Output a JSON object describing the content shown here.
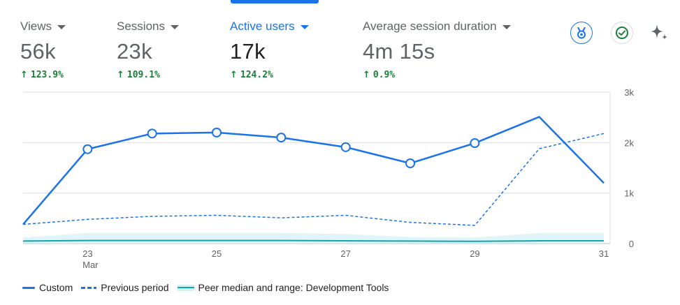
{
  "metrics": [
    {
      "label": "Views",
      "value": "56k",
      "change": "123.9%",
      "active": false
    },
    {
      "label": "Sessions",
      "value": "23k",
      "change": "109.1%",
      "active": false
    },
    {
      "label": "Active users",
      "value": "17k",
      "change": "124.2%",
      "active": true
    },
    {
      "label": "Average session duration",
      "value": "4m 15s",
      "change": "0.9%",
      "active": false
    }
  ],
  "icons": {
    "insights": "medal-icon",
    "verified": "check-circle-icon",
    "ai": "sparkle-icon"
  },
  "colors": {
    "primary": "#1a73e8",
    "positive": "#188038",
    "peer_line": "#12a4af",
    "peer_band": "#d4f1f4"
  },
  "chart_data": {
    "type": "line",
    "x": [
      "22",
      "23",
      "24",
      "25",
      "26",
      "27",
      "28",
      "29",
      "30",
      "31"
    ],
    "x_tick_labels": [
      {
        "x": "23",
        "label": "23",
        "sublabel": "Mar"
      },
      {
        "x": "25",
        "label": "25",
        "sublabel": ""
      },
      {
        "x": "27",
        "label": "27",
        "sublabel": ""
      },
      {
        "x": "29",
        "label": "29",
        "sublabel": ""
      },
      {
        "x": "31",
        "label": "31",
        "sublabel": ""
      }
    ],
    "y_ticks": [
      0,
      1000,
      2000,
      3000
    ],
    "y_tick_labels": [
      "0",
      "1k",
      "2k",
      "3k"
    ],
    "ylim": [
      0,
      3000
    ],
    "y_axis_side": "right",
    "grid": true,
    "series": [
      {
        "name": "Custom",
        "style": "solid",
        "markers": [
          false,
          true,
          true,
          true,
          true,
          true,
          true,
          true,
          false,
          false
        ],
        "values": [
          380,
          1870,
          2180,
          2200,
          2100,
          1910,
          1590,
          1990,
          2510,
          1200
        ]
      },
      {
        "name": "Previous period",
        "style": "dashed",
        "values": [
          380,
          480,
          540,
          560,
          510,
          560,
          420,
          360,
          1880,
          2180
        ]
      },
      {
        "name": "Peer median and range: Development Tools",
        "style": "band",
        "values": [
          50,
          60,
          60,
          60,
          60,
          55,
          50,
          45,
          55,
          55
        ],
        "range_low": [
          0,
          0,
          0,
          0,
          0,
          0,
          0,
          0,
          0,
          0
        ],
        "range_high": [
          120,
          210,
          210,
          210,
          210,
          190,
          130,
          120,
          210,
          210
        ]
      }
    ],
    "legend_position": "bottom-left"
  }
}
